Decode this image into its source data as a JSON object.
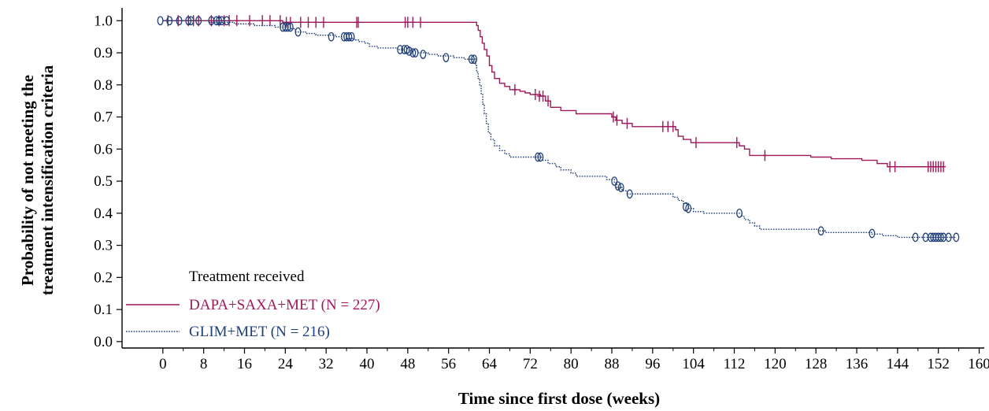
{
  "chart_data": {
    "type": "line",
    "subtype": "kaplan-meier-step",
    "xlabel": "Time since first dose (weeks)",
    "ylabel_lines": [
      "Probability of not meeting the",
      "treatment intensification criteria"
    ],
    "xlim": [
      -8,
      161
    ],
    "ylim": [
      -0.02,
      1.04
    ],
    "xticks": [
      0,
      8,
      16,
      24,
      32,
      40,
      48,
      56,
      64,
      72,
      80,
      88,
      96,
      104,
      112,
      120,
      128,
      136,
      144,
      152,
      160
    ],
    "yticks": [
      0.0,
      0.1,
      0.2,
      0.3,
      0.4,
      0.5,
      0.6,
      0.7,
      0.8,
      0.9,
      1.0
    ],
    "ytick_decimals": 1,
    "grid": false,
    "legend": {
      "title": "Treatment received",
      "placement": "bottom-left"
    },
    "series": [
      {
        "name": "DAPA+SAXA+MET (N = 227)",
        "color": "#a0185c",
        "line_style": "solid",
        "censor_marker": "plus",
        "steps": [
          [
            0,
            1.0
          ],
          [
            23.5,
            0.995
          ],
          [
            61.5,
            0.985
          ],
          [
            61.8,
            0.97
          ],
          [
            62.2,
            0.95
          ],
          [
            62.6,
            0.93
          ],
          [
            63.0,
            0.91
          ],
          [
            63.5,
            0.89
          ],
          [
            64.0,
            0.86
          ],
          [
            64.5,
            0.84
          ],
          [
            65.0,
            0.82
          ],
          [
            66.0,
            0.805
          ],
          [
            67.0,
            0.795
          ],
          [
            68.0,
            0.785
          ],
          [
            70.0,
            0.78
          ],
          [
            71.0,
            0.775
          ],
          [
            72.0,
            0.77
          ],
          [
            74.0,
            0.765
          ],
          [
            75.0,
            0.75
          ],
          [
            76.0,
            0.73
          ],
          [
            78.0,
            0.72
          ],
          [
            81.0,
            0.71
          ],
          [
            88.0,
            0.7
          ],
          [
            88.8,
            0.69
          ],
          [
            90.0,
            0.68
          ],
          [
            92.0,
            0.67
          ],
          [
            100.5,
            0.66
          ],
          [
            101.0,
            0.64
          ],
          [
            102.0,
            0.63
          ],
          [
            103.5,
            0.62
          ],
          [
            113.0,
            0.61
          ],
          [
            114.0,
            0.6
          ],
          [
            115.0,
            0.58
          ],
          [
            127.0,
            0.575
          ],
          [
            131.0,
            0.57
          ],
          [
            137.0,
            0.565
          ],
          [
            140.0,
            0.555
          ],
          [
            142.0,
            0.545
          ],
          [
            153.0,
            0.545
          ]
        ],
        "censored": [
          [
            1.0,
            1.0
          ],
          [
            3.0,
            1.0
          ],
          [
            5.0,
            1.0
          ],
          [
            6.0,
            1.0
          ],
          [
            7.0,
            1.0
          ],
          [
            9.5,
            1.0
          ],
          [
            11.0,
            1.0
          ],
          [
            12.0,
            1.0
          ],
          [
            13.0,
            1.0
          ],
          [
            14.5,
            1.0
          ],
          [
            17.0,
            1.0
          ],
          [
            19.5,
            1.0
          ],
          [
            21.0,
            1.0
          ],
          [
            23.0,
            1.0
          ],
          [
            24.2,
            0.995
          ],
          [
            25.0,
            0.995
          ],
          [
            27.0,
            0.995
          ],
          [
            28.5,
            0.995
          ],
          [
            30.0,
            0.995
          ],
          [
            31.5,
            0.995
          ],
          [
            38.0,
            0.995
          ],
          [
            38.3,
            0.995
          ],
          [
            47.5,
            0.995
          ],
          [
            48.0,
            0.995
          ],
          [
            49.0,
            0.995
          ],
          [
            50.5,
            0.995
          ],
          [
            69.0,
            0.785
          ],
          [
            73.0,
            0.77
          ],
          [
            73.8,
            0.765
          ],
          [
            74.5,
            0.765
          ],
          [
            75.5,
            0.75
          ],
          [
            88.3,
            0.7
          ],
          [
            89.0,
            0.69
          ],
          [
            91.0,
            0.68
          ],
          [
            98.0,
            0.67
          ],
          [
            99.0,
            0.67
          ],
          [
            100.0,
            0.67
          ],
          [
            104.5,
            0.62
          ],
          [
            112.5,
            0.62
          ],
          [
            118.0,
            0.58
          ],
          [
            142.5,
            0.545
          ],
          [
            143.5,
            0.545
          ],
          [
            150.0,
            0.545
          ],
          [
            150.5,
            0.545
          ],
          [
            151.0,
            0.545
          ],
          [
            151.5,
            0.545
          ],
          [
            152.0,
            0.545
          ],
          [
            152.5,
            0.545
          ],
          [
            153.0,
            0.545
          ]
        ]
      },
      {
        "name": "GLIM+MET (N = 216)",
        "color": "#1e3f7a",
        "line_style": "dotted",
        "censor_marker": "circle",
        "steps": [
          [
            0,
            1.0
          ],
          [
            9.0,
            0.995
          ],
          [
            14.0,
            0.99
          ],
          [
            18.0,
            0.985
          ],
          [
            22.0,
            0.98
          ],
          [
            25.0,
            0.975
          ],
          [
            26.0,
            0.965
          ],
          [
            28.0,
            0.96
          ],
          [
            30.0,
            0.955
          ],
          [
            34.0,
            0.95
          ],
          [
            36.0,
            0.945
          ],
          [
            37.5,
            0.94
          ],
          [
            38.5,
            0.935
          ],
          [
            39.5,
            0.93
          ],
          [
            40.5,
            0.92
          ],
          [
            42.0,
            0.915
          ],
          [
            46.0,
            0.91
          ],
          [
            49.0,
            0.905
          ],
          [
            50.0,
            0.9
          ],
          [
            52.0,
            0.895
          ],
          [
            54.0,
            0.89
          ],
          [
            57.0,
            0.885
          ],
          [
            59.0,
            0.88
          ],
          [
            61.3,
            0.86
          ],
          [
            61.5,
            0.84
          ],
          [
            61.8,
            0.82
          ],
          [
            62.1,
            0.8
          ],
          [
            62.4,
            0.77
          ],
          [
            62.7,
            0.74
          ],
          [
            63.0,
            0.71
          ],
          [
            63.4,
            0.68
          ],
          [
            63.8,
            0.65
          ],
          [
            64.3,
            0.63
          ],
          [
            65.0,
            0.61
          ],
          [
            66.0,
            0.595
          ],
          [
            67.0,
            0.585
          ],
          [
            68.0,
            0.575
          ],
          [
            74.5,
            0.565
          ],
          [
            75.5,
            0.555
          ],
          [
            77.0,
            0.545
          ],
          [
            78.0,
            0.535
          ],
          [
            80.0,
            0.525
          ],
          [
            81.0,
            0.515
          ],
          [
            87.0,
            0.505
          ],
          [
            88.5,
            0.495
          ],
          [
            89.0,
            0.48
          ],
          [
            90.0,
            0.47
          ],
          [
            91.0,
            0.46
          ],
          [
            100.0,
            0.45
          ],
          [
            101.0,
            0.44
          ],
          [
            102.0,
            0.43
          ],
          [
            103.0,
            0.415
          ],
          [
            104.0,
            0.405
          ],
          [
            106.0,
            0.4
          ],
          [
            113.5,
            0.39
          ],
          [
            114.0,
            0.38
          ],
          [
            115.0,
            0.37
          ],
          [
            116.0,
            0.36
          ],
          [
            117.0,
            0.35
          ],
          [
            128.5,
            0.345
          ],
          [
            130.0,
            0.34
          ],
          [
            139.0,
            0.335
          ],
          [
            141.0,
            0.33
          ],
          [
            144.0,
            0.325
          ],
          [
            155.5,
            0.325
          ]
        ],
        "censored": [
          [
            -0.5,
            1.0
          ],
          [
            1.3,
            1.0
          ],
          [
            3.2,
            1.0
          ],
          [
            5.0,
            1.0
          ],
          [
            5.5,
            1.0
          ],
          [
            7.0,
            1.0
          ],
          [
            9.5,
            1.0
          ],
          [
            10.5,
            1.0
          ],
          [
            11.0,
            1.0
          ],
          [
            11.5,
            1.0
          ],
          [
            12.5,
            1.0
          ],
          [
            23.5,
            0.98
          ],
          [
            24.0,
            0.98
          ],
          [
            24.5,
            0.98
          ],
          [
            25.0,
            0.98
          ],
          [
            26.5,
            0.965
          ],
          [
            33.0,
            0.95
          ],
          [
            35.5,
            0.95
          ],
          [
            36.0,
            0.95
          ],
          [
            36.5,
            0.95
          ],
          [
            37.0,
            0.95
          ],
          [
            46.5,
            0.91
          ],
          [
            47.3,
            0.91
          ],
          [
            47.8,
            0.91
          ],
          [
            48.3,
            0.905
          ],
          [
            49.0,
            0.9
          ],
          [
            49.5,
            0.9
          ],
          [
            51.0,
            0.895
          ],
          [
            55.5,
            0.885
          ],
          [
            60.5,
            0.88
          ],
          [
            61.0,
            0.88
          ],
          [
            73.5,
            0.575
          ],
          [
            74.0,
            0.575
          ],
          [
            88.5,
            0.5
          ],
          [
            89.2,
            0.485
          ],
          [
            89.8,
            0.48
          ],
          [
            91.5,
            0.46
          ],
          [
            102.5,
            0.42
          ],
          [
            103.0,
            0.415
          ],
          [
            113.0,
            0.4
          ],
          [
            129.0,
            0.345
          ],
          [
            139.0,
            0.337
          ],
          [
            147.5,
            0.325
          ],
          [
            149.5,
            0.325
          ],
          [
            150.5,
            0.325
          ],
          [
            151.0,
            0.325
          ],
          [
            151.5,
            0.325
          ],
          [
            152.0,
            0.325
          ],
          [
            152.5,
            0.325
          ],
          [
            153.0,
            0.325
          ],
          [
            154.0,
            0.325
          ],
          [
            155.5,
            0.325
          ]
        ]
      }
    ]
  }
}
